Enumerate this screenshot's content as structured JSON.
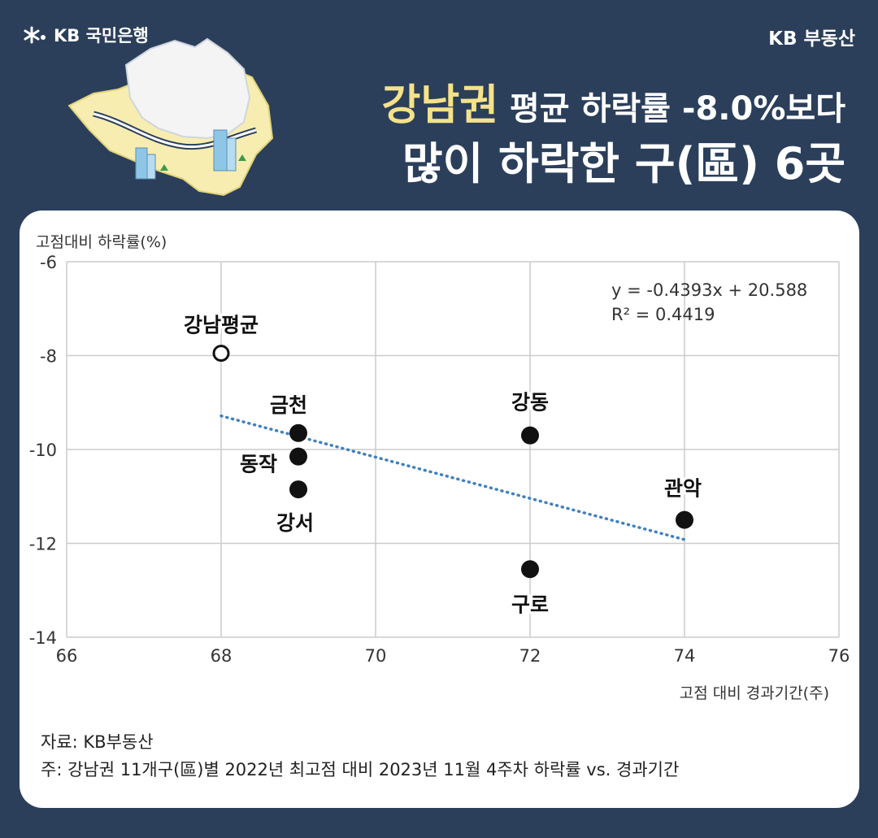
{
  "header": {
    "bank_logo_text": "KB 국민은행",
    "brand_right": "KB 부동산",
    "headline_highlight": "강남권",
    "headline_line1_rest": " 평균 하락률 -8.0%보다",
    "headline_line2": "많이 하락한 구(區) 6곳"
  },
  "colors": {
    "background": "#2b3f5b",
    "highlight": "#f5e289",
    "trendline": "#3f7fc0",
    "map_outer": "#f7edb0",
    "map_inner": "#f4f4f4"
  },
  "chart_data": {
    "type": "scatter",
    "xlabel": "고점 대비 경과기간(주)",
    "ylabel": "고점대비 하락률(%)",
    "xlim": [
      66,
      76
    ],
    "ylim": [
      -14,
      -6
    ],
    "xticks": [
      66,
      68,
      70,
      72,
      74,
      76
    ],
    "yticks": [
      -6,
      -8,
      -10,
      -12,
      -14
    ],
    "grid": true,
    "points": [
      {
        "label": "강남평균",
        "x": 68,
        "y": -7.95,
        "style": "hollow"
      },
      {
        "label": "금천",
        "x": 69,
        "y": -9.65,
        "style": "filled"
      },
      {
        "label": "동작",
        "x": 69,
        "y": -10.15,
        "style": "filled"
      },
      {
        "label": "강서",
        "x": 69,
        "y": -10.85,
        "style": "filled"
      },
      {
        "label": "강동",
        "x": 72,
        "y": -9.7,
        "style": "filled"
      },
      {
        "label": "구로",
        "x": 72,
        "y": -12.55,
        "style": "filled"
      },
      {
        "label": "관악",
        "x": 74,
        "y": -11.5,
        "style": "filled"
      }
    ],
    "trendline": {
      "slope": -0.4393,
      "intercept": 20.588,
      "x_range": [
        68,
        74
      ],
      "style": "dotted"
    },
    "annotations": [
      "y = -0.4393x + 20.588",
      "R² = 0.4419"
    ]
  },
  "footer": {
    "source": "자료: KB부동산",
    "note": "주: 강남권 11개구(區)별 2022년 최고점 대비 2023년 11월 4주차 하락률 vs. 경과기간"
  }
}
